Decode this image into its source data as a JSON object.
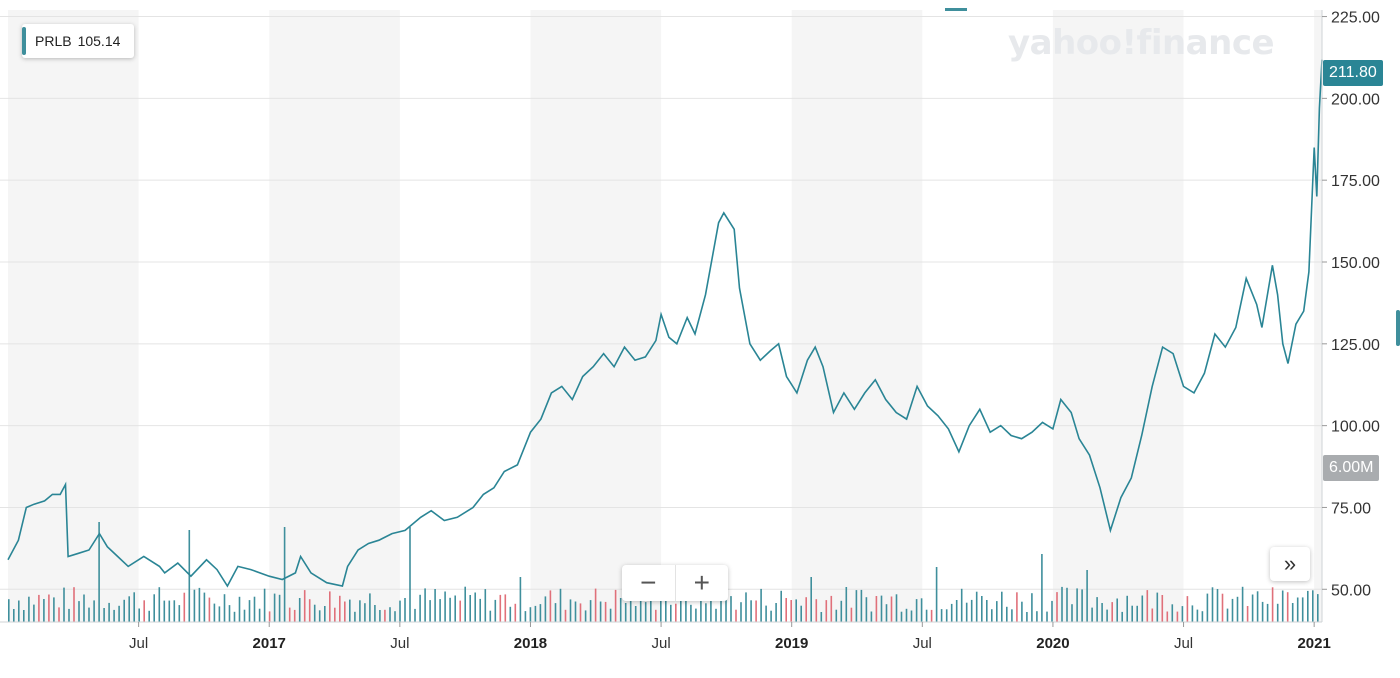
{
  "ticker": {
    "symbol": "PRLB",
    "value": "105.14"
  },
  "watermark": "yahoo!finance",
  "price_tag": "211.80",
  "volume_tag": "6.00M",
  "zoom": {
    "minus": "−",
    "plus": "+"
  },
  "scroll_glyph": "»",
  "colors": {
    "line": "#2a8595",
    "band": "#f5f5f5",
    "vol_up": "#3f8f9c",
    "vol_down": "#e0707a",
    "grid": "#e4e4e4"
  },
  "chart_data": {
    "type": "line",
    "symbol": "PRLB",
    "ylim": [
      40,
      227
    ],
    "y_ticks": [
      50,
      75,
      100,
      125,
      150,
      175,
      200,
      225
    ],
    "y_tick_labels": [
      "50.00",
      "75.00",
      "100.00",
      "125.00",
      "150.00",
      "175.00",
      "200.00",
      "225.00"
    ],
    "x_ticks": [
      {
        "t": 2016.5,
        "label": "Jul",
        "year": false
      },
      {
        "t": 2017.0,
        "label": "2017",
        "year": true
      },
      {
        "t": 2017.5,
        "label": "Jul",
        "year": false
      },
      {
        "t": 2018.0,
        "label": "2018",
        "year": true
      },
      {
        "t": 2018.5,
        "label": "Jul",
        "year": false
      },
      {
        "t": 2019.0,
        "label": "2019",
        "year": true
      },
      {
        "t": 2019.5,
        "label": "Jul",
        "year": false
      },
      {
        "t": 2020.0,
        "label": "2020",
        "year": true
      },
      {
        "t": 2020.5,
        "label": "Jul",
        "year": false
      },
      {
        "t": 2021.0,
        "label": "2021",
        "year": true
      }
    ],
    "x_range": [
      2016.0,
      2021.03
    ],
    "series": [
      {
        "values": [
          [
            2016.0,
            59
          ],
          [
            2016.04,
            65
          ],
          [
            2016.07,
            75
          ],
          [
            2016.1,
            76
          ],
          [
            2016.14,
            77
          ],
          [
            2016.17,
            79
          ],
          [
            2016.2,
            79
          ],
          [
            2016.22,
            82
          ],
          [
            2016.23,
            60
          ],
          [
            2016.27,
            61
          ],
          [
            2016.31,
            62
          ],
          [
            2016.35,
            67
          ],
          [
            2016.38,
            63
          ],
          [
            2016.42,
            60
          ],
          [
            2016.46,
            57
          ],
          [
            2016.52,
            60
          ],
          [
            2016.58,
            57
          ],
          [
            2016.6,
            55
          ],
          [
            2016.65,
            58
          ],
          [
            2016.7,
            54
          ],
          [
            2016.76,
            59
          ],
          [
            2016.8,
            56
          ],
          [
            2016.84,
            51
          ],
          [
            2016.88,
            57
          ],
          [
            2016.93,
            56
          ],
          [
            2017.0,
            54
          ],
          [
            2017.05,
            53
          ],
          [
            2017.1,
            55
          ],
          [
            2017.12,
            60
          ],
          [
            2017.16,
            55
          ],
          [
            2017.22,
            52
          ],
          [
            2017.28,
            51
          ],
          [
            2017.3,
            57
          ],
          [
            2017.34,
            62
          ],
          [
            2017.38,
            64
          ],
          [
            2017.42,
            65
          ],
          [
            2017.47,
            67
          ],
          [
            2017.52,
            68
          ],
          [
            2017.58,
            72
          ],
          [
            2017.62,
            74
          ],
          [
            2017.67,
            71
          ],
          [
            2017.72,
            72
          ],
          [
            2017.78,
            75
          ],
          [
            2017.82,
            79
          ],
          [
            2017.86,
            81
          ],
          [
            2017.9,
            86
          ],
          [
            2017.95,
            88
          ],
          [
            2018.0,
            98
          ],
          [
            2018.04,
            102
          ],
          [
            2018.08,
            110
          ],
          [
            2018.12,
            112
          ],
          [
            2018.16,
            108
          ],
          [
            2018.2,
            115
          ],
          [
            2018.24,
            118
          ],
          [
            2018.28,
            122
          ],
          [
            2018.32,
            118
          ],
          [
            2018.36,
            124
          ],
          [
            2018.4,
            120
          ],
          [
            2018.44,
            121
          ],
          [
            2018.48,
            126
          ],
          [
            2018.5,
            134
          ],
          [
            2018.53,
            127
          ],
          [
            2018.56,
            125
          ],
          [
            2018.6,
            133
          ],
          [
            2018.63,
            128
          ],
          [
            2018.67,
            140
          ],
          [
            2018.72,
            162
          ],
          [
            2018.74,
            165
          ],
          [
            2018.78,
            160
          ],
          [
            2018.8,
            142
          ],
          [
            2018.84,
            125
          ],
          [
            2018.88,
            120
          ],
          [
            2018.92,
            123
          ],
          [
            2018.95,
            125
          ],
          [
            2018.98,
            115
          ],
          [
            2019.02,
            110
          ],
          [
            2019.06,
            120
          ],
          [
            2019.09,
            124
          ],
          [
            2019.12,
            118
          ],
          [
            2019.16,
            104
          ],
          [
            2019.2,
            110
          ],
          [
            2019.24,
            105
          ],
          [
            2019.28,
            110
          ],
          [
            2019.32,
            114
          ],
          [
            2019.36,
            108
          ],
          [
            2019.4,
            104
          ],
          [
            2019.44,
            102
          ],
          [
            2019.48,
            112
          ],
          [
            2019.52,
            106
          ],
          [
            2019.56,
            103
          ],
          [
            2019.6,
            99
          ],
          [
            2019.64,
            92
          ],
          [
            2019.68,
            100
          ],
          [
            2019.72,
            105
          ],
          [
            2019.76,
            98
          ],
          [
            2019.8,
            100
          ],
          [
            2019.84,
            97
          ],
          [
            2019.88,
            96
          ],
          [
            2019.92,
            98
          ],
          [
            2019.96,
            101
          ],
          [
            2020.0,
            99
          ],
          [
            2020.03,
            108
          ],
          [
            2020.07,
            104
          ],
          [
            2020.1,
            96
          ],
          [
            2020.14,
            91
          ],
          [
            2020.18,
            81
          ],
          [
            2020.22,
            68
          ],
          [
            2020.26,
            78
          ],
          [
            2020.3,
            84
          ],
          [
            2020.34,
            97
          ],
          [
            2020.38,
            112
          ],
          [
            2020.42,
            124
          ],
          [
            2020.46,
            122
          ],
          [
            2020.5,
            112
          ],
          [
            2020.54,
            110
          ],
          [
            2020.58,
            116
          ],
          [
            2020.62,
            128
          ],
          [
            2020.66,
            124
          ],
          [
            2020.7,
            130
          ],
          [
            2020.74,
            145
          ],
          [
            2020.78,
            137
          ],
          [
            2020.8,
            130
          ],
          [
            2020.84,
            149
          ],
          [
            2020.86,
            140
          ],
          [
            2020.88,
            125
          ],
          [
            2020.9,
            119
          ],
          [
            2020.93,
            131
          ],
          [
            2020.96,
            135
          ],
          [
            2020.98,
            147
          ],
          [
            2021.0,
            185
          ],
          [
            2021.01,
            170
          ],
          [
            2021.02,
            197
          ],
          [
            2021.03,
            211.8
          ]
        ]
      }
    ]
  }
}
